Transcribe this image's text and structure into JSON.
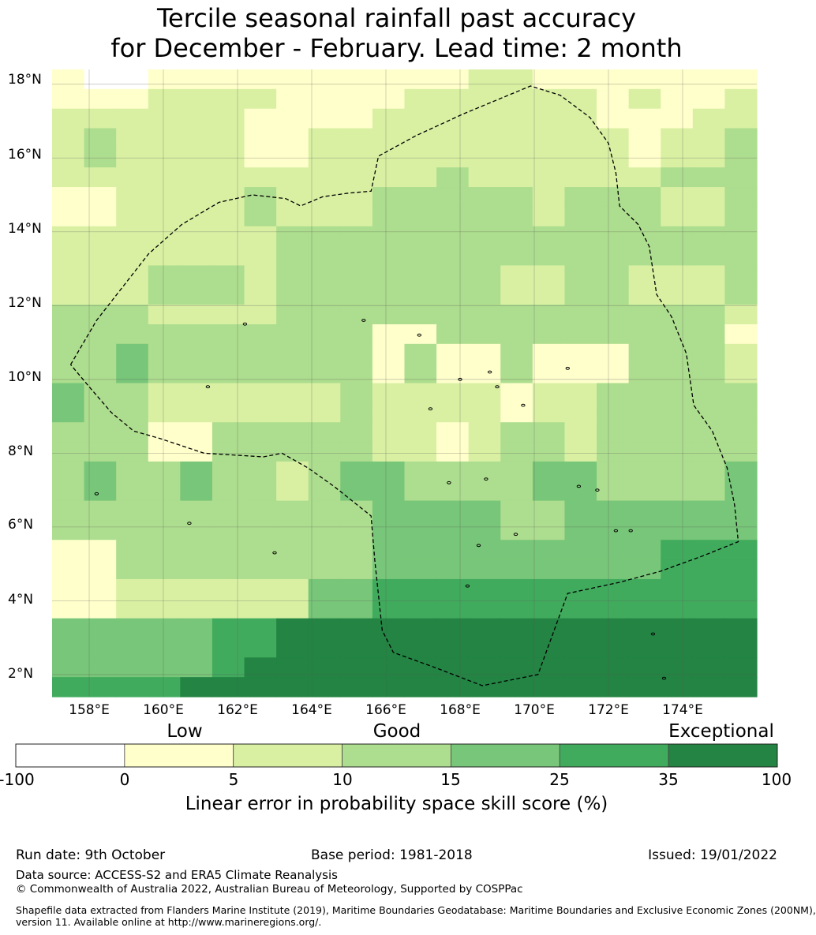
{
  "title": {
    "line1": "Tercile seasonal rainfall past accuracy",
    "line2": "for December - February. Lead time: 2 month"
  },
  "map": {
    "lon_range": [
      157,
      176
    ],
    "lat_range": [
      1.4,
      18.4
    ],
    "x_ticks": [
      "158°E",
      "160°E",
      "162°E",
      "164°E",
      "166°E",
      "168°E",
      "170°E",
      "172°E",
      "174°E"
    ],
    "y_ticks": [
      "18°N",
      "16°N",
      "14°N",
      "12°N",
      "10°N",
      "8°N",
      "6°N",
      "4°N",
      "2°N"
    ],
    "cell_size_deg": 0.83,
    "grid_rows_north_to_south": [
      "1001111111111221111111",
      "1112222111122222212112",
      "2222221111222222211122",
      "2322221122222222221223",
      "2322221122222222221223",
      "2222222222223222222333",
      "1122223222333332333223",
      "1122223222333332333223",
      "2222222333333333333333",
      "2222222333333333333333",
      "2223332333333322332223",
      "2223332333333322332223",
      "3332222333333333333332",
      "3333333333113333333331",
      "3343333333131131113332",
      "3343333333131131113332",
      "4332222223222212233333",
      "4332222223222212233333",
      "3331133333221233233333",
      "3331133333221233233333",
      "3433433234433334433334",
      "3433433234433334433334",
      "3333333333444433444444",
      "3333333333444433444444",
      "1133333333444444444555",
      "1133333333444444444555",
      "1122222244555555555555",
      "1122222244555555555555",
      "4444455666666666666666",
      "4444455666666666666666",
      "4444456666666666666666",
      "5555666666666666666666"
    ],
    "eez_boundary_lonlat": [
      [
        157.5,
        10.4
      ],
      [
        158.2,
        11.6
      ],
      [
        158.9,
        12.5
      ],
      [
        159.6,
        13.4
      ],
      [
        160.5,
        14.2
      ],
      [
        161.5,
        14.8
      ],
      [
        162.4,
        15.0
      ],
      [
        163.3,
        14.9
      ],
      [
        163.7,
        14.7
      ],
      [
        164.3,
        14.95
      ],
      [
        165.0,
        15.05
      ],
      [
        165.6,
        15.1
      ],
      [
        165.8,
        16.05
      ],
      [
        166.8,
        16.6
      ],
      [
        168.1,
        17.2
      ],
      [
        169.3,
        17.7
      ],
      [
        169.9,
        17.95
      ],
      [
        170.7,
        17.7
      ],
      [
        171.5,
        17.1
      ],
      [
        172.0,
        16.4
      ],
      [
        172.2,
        15.6
      ],
      [
        172.3,
        14.7
      ],
      [
        172.8,
        14.2
      ],
      [
        173.1,
        13.6
      ],
      [
        173.3,
        12.3
      ],
      [
        173.7,
        11.7
      ],
      [
        174.1,
        10.7
      ],
      [
        174.3,
        9.3
      ],
      [
        174.8,
        8.6
      ],
      [
        175.2,
        7.6
      ],
      [
        175.4,
        6.6
      ],
      [
        175.5,
        5.6
      ],
      [
        174.5,
        5.2
      ],
      [
        173.4,
        4.8
      ],
      [
        172.3,
        4.5
      ],
      [
        170.9,
        4.2
      ],
      [
        170.1,
        2.0
      ],
      [
        168.6,
        1.7
      ],
      [
        167.3,
        2.2
      ],
      [
        166.2,
        2.6
      ],
      [
        165.9,
        3.2
      ],
      [
        165.7,
        5.1
      ],
      [
        165.6,
        6.3
      ],
      [
        164.6,
        7.1
      ],
      [
        163.9,
        7.6
      ],
      [
        163.2,
        8.0
      ],
      [
        162.7,
        7.9
      ],
      [
        161.1,
        8.0
      ],
      [
        159.9,
        8.4
      ],
      [
        159.2,
        8.6
      ],
      [
        158.6,
        9.1
      ],
      [
        158.0,
        9.8
      ]
    ],
    "islands_lonlat": [
      [
        158.2,
        6.9
      ],
      [
        163.0,
        5.3
      ],
      [
        160.7,
        6.1
      ],
      [
        167.7,
        7.2
      ],
      [
        168.7,
        7.3
      ],
      [
        171.2,
        7.1
      ],
      [
        171.7,
        7.0
      ],
      [
        172.6,
        5.9
      ],
      [
        169.5,
        5.8
      ],
      [
        168.5,
        5.5
      ],
      [
        168.2,
        4.4
      ],
      [
        172.2,
        5.9
      ],
      [
        173.2,
        3.1
      ],
      [
        173.5,
        1.9
      ],
      [
        168.0,
        10.0
      ],
      [
        169.0,
        9.8
      ],
      [
        170.9,
        10.3
      ],
      [
        167.2,
        9.2
      ],
      [
        161.2,
        9.8
      ],
      [
        162.2,
        11.5
      ],
      [
        166.9,
        11.2
      ],
      [
        168.8,
        10.2
      ],
      [
        169.7,
        9.3
      ],
      [
        165.4,
        11.6
      ]
    ]
  },
  "colorbar": {
    "categories": [
      "Low",
      "Good",
      "Exceptional"
    ],
    "ticks": [
      "-100",
      "0",
      "5",
      "10",
      "15",
      "25",
      "35",
      "100"
    ],
    "colors": [
      "#ffffff",
      "#ffffcc",
      "#d9f0a3",
      "#addd8e",
      "#78c679",
      "#41ab5d",
      "#238443"
    ],
    "label": "Linear error in probability space skill score (%)"
  },
  "footer": {
    "run_date": "Run date: 9th October",
    "base_period": "Base period: 1981-2018",
    "issued": "Issued: 19/01/2022",
    "data_source": "Data source: ACCESS-S2 and ERA5 Climate Reanalysis",
    "copyright": "© Commonwealth of Australia 2022, Australian Bureau of Meteorology, Supported by COSPPac",
    "shapefile_line1": "Shapefile data extracted from Flanders Marine Institute (2019), Maritime Boundaries Geodatabase: Maritime Boundaries and Exclusive Economic Zones (200NM),",
    "shapefile_line2": "version 11. Available online at http://www.marineregions.org/."
  }
}
